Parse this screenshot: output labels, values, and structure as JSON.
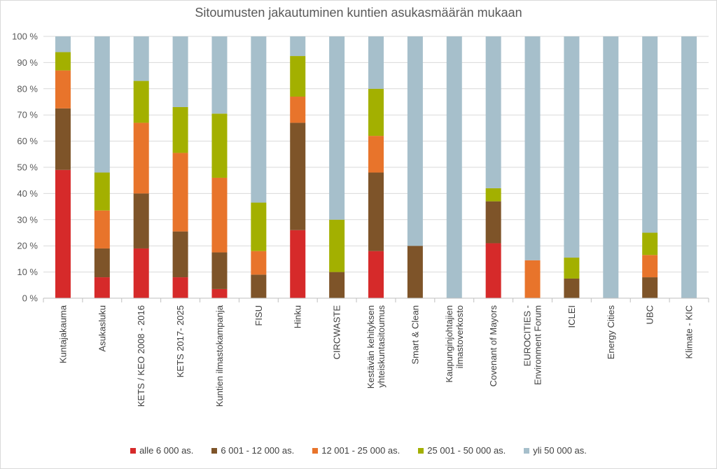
{
  "chart_data": {
    "type": "bar",
    "stacked": true,
    "title": "Sitoumusten jakautuminen kuntien asukasmäärän mukaan",
    "ylim": [
      0,
      100
    ],
    "y_ticks": [
      "0 %",
      "10 %",
      "20 %",
      "30 %",
      "40 %",
      "50 %",
      "60 %",
      "70 %",
      "80 %",
      "90 %",
      "100 %"
    ],
    "grid": true,
    "legend_position": "bottom",
    "categories": [
      "Kuntajakauma",
      "Asukasluku",
      "KETS / KEO 2008 - 2016",
      "KETS 2017- 2025",
      "Kuntien ilmastokampanja",
      "FISU",
      "Hinku",
      "CIRCWASTE",
      "Kestävän kehityksen yhteiskuntasitoumus",
      "Smart & Clean",
      "Kaupunginjohtajien ilmastoverkosto",
      "Covenant of Mayors",
      "EUROCITIES - Environment Forum",
      "ICLEI",
      "Energy Cities",
      "UBC",
      "Klimate - KIC"
    ],
    "series": [
      {
        "name": "alle 6 000 as.",
        "color": "#d62a2a",
        "values": [
          49,
          8,
          19,
          8,
          3.5,
          0,
          26,
          0,
          18,
          0,
          0,
          21,
          0,
          0,
          0,
          0,
          0
        ]
      },
      {
        "name": "6 001 - 12 000 as.",
        "color": "#7e5429",
        "values": [
          23.5,
          11,
          21,
          17.5,
          14,
          9,
          41,
          10,
          30,
          20,
          0,
          16,
          0,
          7.5,
          0,
          8,
          0
        ]
      },
      {
        "name": "12 001 - 25 000 as.",
        "color": "#e8742b",
        "values": [
          14.5,
          14.5,
          27,
          30,
          28.5,
          9,
          10,
          0,
          14,
          0,
          0,
          0,
          14.5,
          0,
          0,
          8.5,
          0
        ]
      },
      {
        "name": "25 001 - 50 000 as.",
        "color": "#a3b000",
        "values": [
          7,
          14.5,
          16,
          17.5,
          24.5,
          18.5,
          15.5,
          20,
          18,
          0,
          0,
          5,
          0,
          8,
          0,
          8.5,
          0
        ]
      },
      {
        "name": "yli 50 000 as.",
        "color": "#a6bfcb",
        "values": [
          6,
          52,
          17,
          27,
          29.5,
          63.5,
          7.5,
          70,
          20,
          80,
          100,
          58,
          85.5,
          84.5,
          100,
          75,
          100
        ]
      }
    ]
  }
}
